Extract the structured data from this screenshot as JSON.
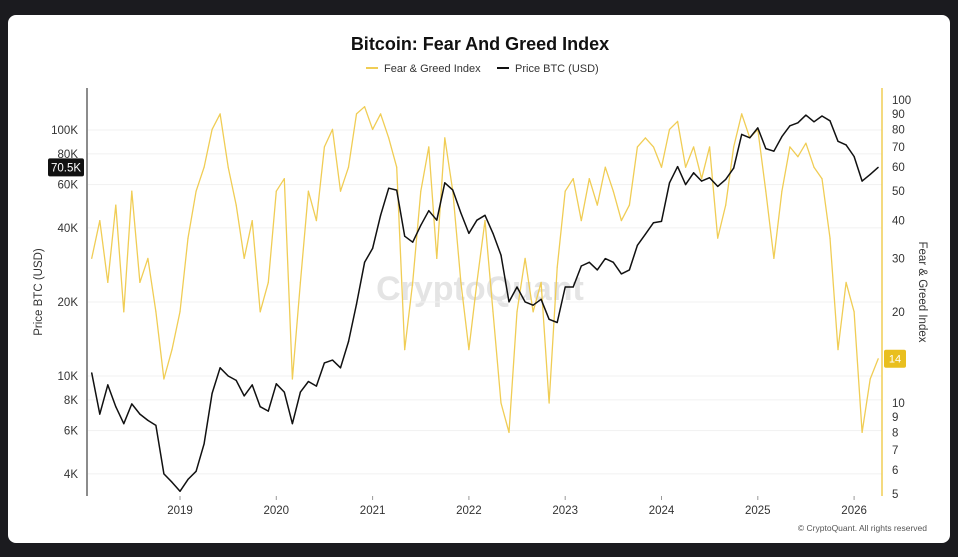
{
  "chart_data": {
    "type": "line",
    "title": "Bitcoin: Fear And Greed Index",
    "legend_position": "top",
    "grid": true,
    "watermark": "CryptoQuant",
    "footer": "© CryptoQuant. All rights reserved",
    "x": [
      "2018-02",
      "2018-03",
      "2018-04",
      "2018-05",
      "2018-06",
      "2018-07",
      "2018-08",
      "2018-09",
      "2018-10",
      "2018-11",
      "2018-12",
      "2019-01",
      "2019-02",
      "2019-03",
      "2019-04",
      "2019-05",
      "2019-06",
      "2019-07",
      "2019-08",
      "2019-09",
      "2019-10",
      "2019-11",
      "2019-12",
      "2020-01",
      "2020-02",
      "2020-03",
      "2020-04",
      "2020-05",
      "2020-06",
      "2020-07",
      "2020-08",
      "2020-09",
      "2020-10",
      "2020-11",
      "2020-12",
      "2021-01",
      "2021-02",
      "2021-03",
      "2021-04",
      "2021-05",
      "2021-06",
      "2021-07",
      "2021-08",
      "2021-09",
      "2021-10",
      "2021-11",
      "2021-12",
      "2022-01",
      "2022-02",
      "2022-03",
      "2022-04",
      "2022-05",
      "2022-06",
      "2022-07",
      "2022-08",
      "2022-09",
      "2022-10",
      "2022-11",
      "2022-12",
      "2023-01",
      "2023-02",
      "2023-03",
      "2023-04",
      "2023-05",
      "2023-06",
      "2023-07",
      "2023-08",
      "2023-09",
      "2023-10",
      "2023-11",
      "2023-12",
      "2024-01",
      "2024-02",
      "2024-03",
      "2024-04",
      "2024-05",
      "2024-06",
      "2024-07",
      "2024-08",
      "2024-09",
      "2024-10",
      "2024-11",
      "2024-12",
      "2025-01",
      "2025-02",
      "2025-03",
      "2025-04",
      "2025-05",
      "2025-06",
      "2025-07",
      "2025-08",
      "2025-09",
      "2025-10",
      "2025-11",
      "2025-12",
      "2026-01",
      "2026-02",
      "2026-03",
      "2026-04"
    ],
    "series": [
      {
        "name": "Fear & Greed Index",
        "axis": "right",
        "color": "#f0cd55",
        "values": [
          30,
          40,
          25,
          45,
          20,
          50,
          25,
          30,
          20,
          12,
          15,
          20,
          35,
          50,
          60,
          80,
          90,
          60,
          45,
          30,
          40,
          20,
          25,
          50,
          55,
          12,
          25,
          50,
          40,
          70,
          80,
          50,
          60,
          90,
          95,
          80,
          90,
          75,
          60,
          15,
          25,
          50,
          70,
          30,
          75,
          50,
          25,
          15,
          25,
          40,
          20,
          10,
          8,
          20,
          30,
          20,
          25,
          10,
          28,
          50,
          55,
          40,
          55,
          45,
          60,
          50,
          40,
          45,
          70,
          75,
          70,
          60,
          80,
          85,
          60,
          70,
          55,
          70,
          35,
          45,
          70,
          90,
          75,
          80,
          50,
          30,
          50,
          70,
          65,
          72,
          60,
          55,
          35,
          15,
          25,
          20,
          8,
          12,
          14
        ]
      },
      {
        "name": "Price BTC (USD)",
        "axis": "left",
        "color": "#111111",
        "values": [
          10300,
          7000,
          9200,
          7500,
          6400,
          7700,
          7000,
          6600,
          6300,
          4000,
          3700,
          3400,
          3800,
          4100,
          5300,
          8500,
          10800,
          10000,
          9600,
          8300,
          9200,
          7500,
          7200,
          9300,
          8600,
          6400,
          8600,
          9500,
          9100,
          11300,
          11600,
          10800,
          13800,
          19600,
          29000,
          33000,
          45000,
          58000,
          57000,
          37000,
          35000,
          41000,
          47000,
          43000,
          61000,
          57000,
          46000,
          38000,
          43000,
          45000,
          38000,
          31000,
          20000,
          23000,
          20000,
          19400,
          20500,
          17000,
          16500,
          23000,
          23000,
          28000,
          29000,
          27000,
          30000,
          29000,
          26000,
          27000,
          34000,
          37700,
          42000,
          42500,
          61000,
          71000,
          60000,
          67000,
          62000,
          64000,
          59000,
          63000,
          70000,
          96000,
          93000,
          102000,
          84000,
          82000,
          94000,
          104000,
          107000,
          115000,
          108000,
          114000,
          109000,
          90000,
          87000,
          78000,
          62000,
          66000,
          70500
        ]
      }
    ],
    "x_ticks": [
      "2019",
      "2020",
      "2021",
      "2022",
      "2023",
      "2024",
      "2025",
      "2026"
    ],
    "y_left": {
      "label": "Price BTC (USD)",
      "scale": "log",
      "ticks": [
        "4K",
        "6K",
        "8K",
        "10K",
        "20K",
        "40K",
        "60K",
        "80K",
        "100K"
      ],
      "tick_values": [
        4000,
        6000,
        8000,
        10000,
        20000,
        40000,
        60000,
        80000,
        100000
      ],
      "current_label": "70.5K",
      "current_value": 70500
    },
    "y_right": {
      "label": "Fear & Greed Index",
      "scale": "log",
      "ticks": [
        "5",
        "6",
        "7",
        "8",
        "9",
        "10",
        "20",
        "30",
        "40",
        "50",
        "60",
        "70",
        "80",
        "90",
        "100"
      ],
      "tick_values": [
        5,
        6,
        7,
        8,
        9,
        10,
        20,
        30,
        40,
        50,
        60,
        70,
        80,
        90,
        100
      ],
      "current_label": "14",
      "current_value": 14
    }
  }
}
